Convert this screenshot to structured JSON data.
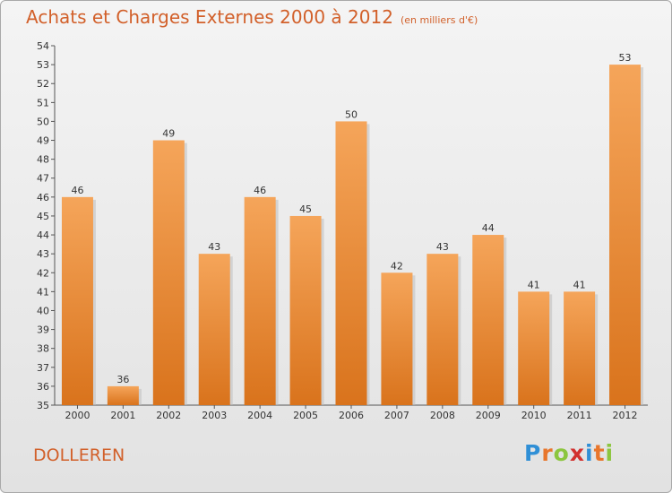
{
  "title": "Achats et Charges Externes 2000 à 2012",
  "subtitle": "(en milliers d'€)",
  "commune": "DOLLEREN",
  "logo": {
    "letters": [
      "P",
      "r",
      "o",
      "x",
      "i",
      "t",
      "i"
    ],
    "colors": [
      "#2f8fd6",
      "#e8762c",
      "#8cc63f",
      "#d2312e",
      "#2f8fd6",
      "#e8762c",
      "#8cc63f"
    ]
  },
  "colors": {
    "bar_top": "#f5a55a",
    "bar_bottom": "#d9731c",
    "title": "#d2602a"
  },
  "chart_data": {
    "type": "bar",
    "title": "Achats et Charges Externes 2000 à 2012",
    "xlabel": "",
    "ylabel": "",
    "categories": [
      "2000",
      "2001",
      "2002",
      "2003",
      "2004",
      "2005",
      "2006",
      "2007",
      "2008",
      "2009",
      "2010",
      "2011",
      "2012"
    ],
    "values": [
      46,
      36,
      49,
      43,
      46,
      45,
      50,
      42,
      43,
      44,
      41,
      41,
      53
    ],
    "ylim": [
      35,
      54
    ],
    "yticks": [
      35,
      36,
      37,
      38,
      39,
      40,
      41,
      42,
      43,
      44,
      45,
      46,
      47,
      48,
      49,
      50,
      51,
      52,
      53,
      54
    ],
    "grid": false
  }
}
